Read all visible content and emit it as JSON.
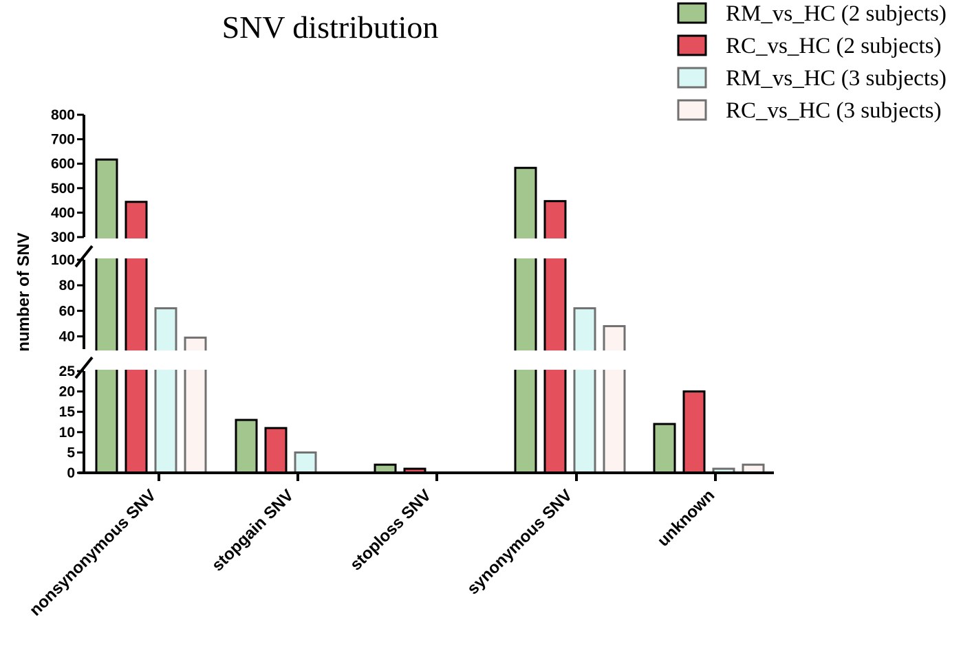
{
  "chart_data": {
    "type": "bar",
    "title": "SNV distribution",
    "xlabel": "",
    "ylabel": "number of SNV",
    "legend_position": "top-right",
    "categories": [
      "nonsynonymous SNV",
      "stopgain SNV",
      "stoploss SNV",
      "synonymous SNV",
      "unknown"
    ],
    "series": [
      {
        "name": "RM_vs_HC (2 subjects)",
        "color": "#a3c68f",
        "stroke": "#000000",
        "values": [
          617,
          13,
          2,
          583,
          12
        ]
      },
      {
        "name": "RC_vs_HC (2 subjects)",
        "color": "#e4515c",
        "stroke": "#000000",
        "values": [
          444,
          11,
          1,
          447,
          20
        ]
      },
      {
        "name": "RM_vs_HC (3 subjects)",
        "color": "#d8f7f5",
        "stroke": "#707070",
        "values": [
          62,
          5,
          0,
          62,
          1
        ]
      },
      {
        "name": "RC_vs_HC (3 subjects)",
        "color": "#fdf4f2",
        "stroke": "#707070",
        "values": [
          39,
          0,
          0,
          48,
          2
        ]
      }
    ],
    "y_axis_segments": [
      {
        "range": [
          0,
          25
        ],
        "ticks": [
          "0",
          "5",
          "10",
          "15",
          "20",
          "25"
        ],
        "tick_values": [
          0,
          5,
          10,
          15,
          20,
          25
        ]
      },
      {
        "range": [
          30,
          100
        ],
        "ticks": [
          "40",
          "60",
          "80",
          "100"
        ],
        "tick_values": [
          40,
          60,
          80,
          100
        ]
      },
      {
        "range": [
          300,
          800
        ],
        "ticks": [
          "300",
          "400",
          "500",
          "600",
          "700",
          "800"
        ],
        "tick_values": [
          300,
          400,
          500,
          600,
          700,
          800
        ]
      }
    ]
  }
}
